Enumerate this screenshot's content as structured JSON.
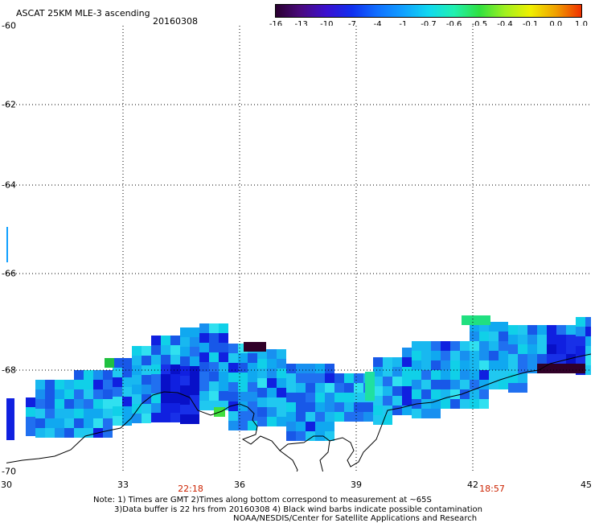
{
  "title": "ASCAT 25KM MLE-3 ascending",
  "date": "20160308",
  "colorbar": {
    "labels": [
      "-16",
      "-13",
      "-10",
      "-7",
      "-4",
      "-1",
      "-0.7",
      "-0.6",
      "-0.5",
      "-0.4",
      "-0.1",
      "0.0",
      "1.0"
    ],
    "colors": [
      "#2a0030",
      "#4a0a80",
      "#3a10d0",
      "#1030f0",
      "#1070ff",
      "#10a0ff",
      "#10d8f0",
      "#20f0b0",
      "#30e040",
      "#a0f020",
      "#f0f000",
      "#f0a000",
      "#f03000"
    ]
  },
  "axes": {
    "x_ticks": [
      "30",
      "33",
      "36",
      "39",
      "42",
      "45"
    ],
    "y_ticks": [
      "-60",
      "-62",
      "-64",
      "-66",
      "-68",
      "-70"
    ]
  },
  "times": [
    "22:18",
    "18:57"
  ],
  "notes": [
    "Note: 1) Times are GMT 2)Times along bottom correspond to measurement at ~65S",
    "3)Data buffer is 22 hrs from 20160308 4) Black wind barbs indicate possible contamination",
    "NOAA/NESDIS/Center for Satellite Applications and Research"
  ]
}
